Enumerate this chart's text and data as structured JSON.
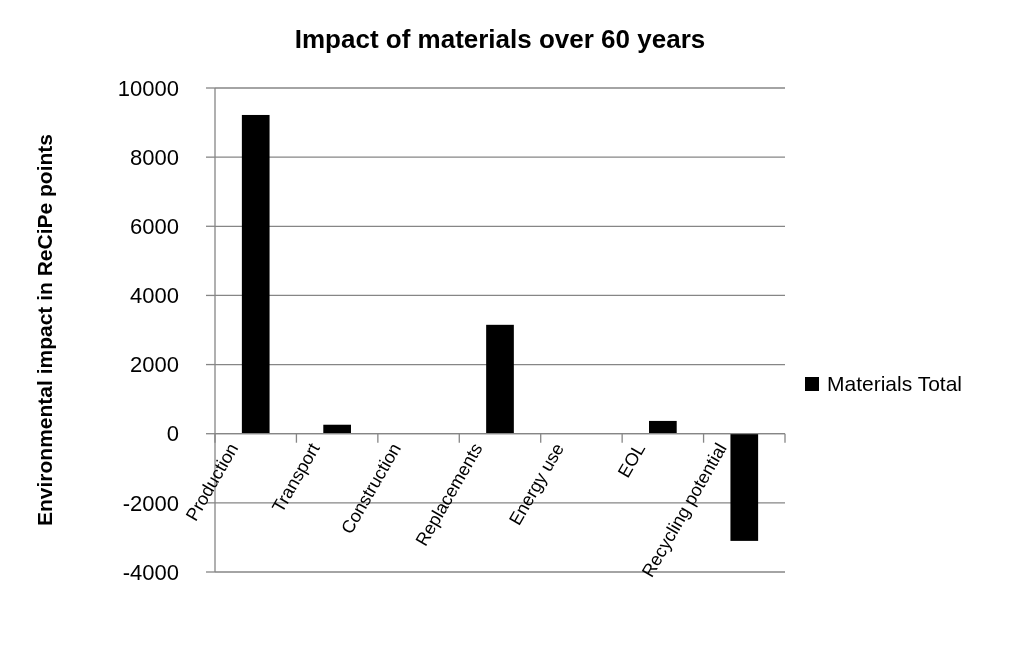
{
  "chart_data": {
    "type": "bar",
    "title": "Impact of materials over 60 years",
    "ylabel": "Environmental impact in ReCiPe points",
    "categories": [
      "Production",
      "Transport",
      "Construction",
      "Replacements",
      "Energy use",
      "EOL",
      "Recycling potential"
    ],
    "series": [
      {
        "name": "Materials Total",
        "color": "#000000",
        "values": [
          9220,
          260,
          0,
          3150,
          0,
          370,
          -3100
        ]
      }
    ],
    "ylim": [
      -4000,
      10000
    ],
    "yticks": [
      -4000,
      -2000,
      0,
      2000,
      4000,
      6000,
      8000,
      10000
    ],
    "grid": "y",
    "legend": "right"
  }
}
